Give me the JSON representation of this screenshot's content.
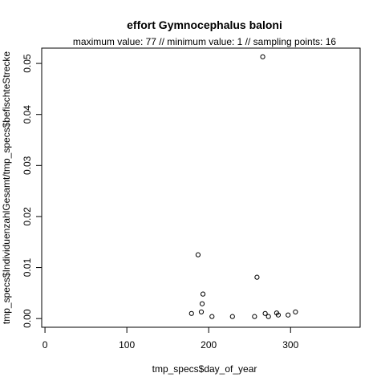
{
  "chart_data": {
    "type": "scatter",
    "title": "effort Gymnocephalus baloni",
    "subtitle": "maximum value: 77  //  minimum value: 1  // sampling points: 16",
    "xlabel": "tmp_specs$day_of_year",
    "ylabel": "tmp_specs$IndividuenzahlGesamt/tmp_specs$befischteStrecke",
    "xlim": [
      -4,
      385
    ],
    "ylim": [
      -0.0017,
      0.053
    ],
    "x_ticks": [
      0,
      100,
      200,
      300
    ],
    "x_tick_labels": [
      "0",
      "100",
      "200",
      "300"
    ],
    "y_ticks": [
      0.0,
      0.01,
      0.02,
      0.03,
      0.04,
      0.05
    ],
    "y_tick_labels": [
      "0.00",
      "0.01",
      "0.02",
      "0.03",
      "0.04",
      "0.05"
    ],
    "grid": false,
    "legend": "none",
    "point_style": "open-circle",
    "point_color": "#000000",
    "points": [
      {
        "x": 179,
        "y": 0.001
      },
      {
        "x": 187,
        "y": 0.0125
      },
      {
        "x": 191,
        "y": 0.0013
      },
      {
        "x": 192,
        "y": 0.0029
      },
      {
        "x": 193,
        "y": 0.0048
      },
      {
        "x": 204,
        "y": 0.0004
      },
      {
        "x": 229,
        "y": 0.0004
      },
      {
        "x": 256,
        "y": 0.0004
      },
      {
        "x": 259,
        "y": 0.0081
      },
      {
        "x": 266,
        "y": 0.0513
      },
      {
        "x": 269,
        "y": 0.001
      },
      {
        "x": 273,
        "y": 0.0004
      },
      {
        "x": 283,
        "y": 0.0011
      },
      {
        "x": 285,
        "y": 0.0007
      },
      {
        "x": 297,
        "y": 0.0007
      },
      {
        "x": 306,
        "y": 0.0013
      }
    ]
  }
}
